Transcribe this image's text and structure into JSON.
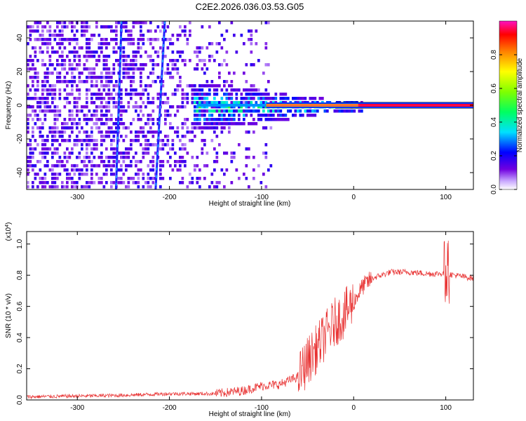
{
  "title": "C2E2.2026.036.03.53.G05",
  "chart_data": [
    {
      "type": "heatmap",
      "name": "spectrogram",
      "xlabel": "Height of straight line (km)",
      "ylabel": "Frequency (Hz)",
      "xlim": [
        -355,
        130
      ],
      "ylim": [
        -50,
        50
      ],
      "xticks": [
        -300,
        -200,
        -100,
        0,
        100
      ],
      "yticks": [
        -40,
        -20,
        0,
        20,
        40
      ],
      "colorbar": {
        "label": "Normalized spectral amplitude",
        "range": [
          0,
          1
        ],
        "ticks": [
          "0.0",
          "0.2",
          "0.4",
          "0.6",
          "0.8"
        ],
        "tick_values": [
          0.0,
          0.2,
          0.4,
          0.6,
          0.8
        ]
      },
      "features": [
        {
          "name": "main-tone",
          "freq_hz": 0,
          "from_km": -170,
          "to_km": 130,
          "peak_amplitude": 1.0
        },
        {
          "name": "diagonal-track-left",
          "points_km_hz": [
            [
              -252,
              50
            ],
            [
              -258,
              -50
            ]
          ]
        },
        {
          "name": "diagonal-track-right",
          "points_km_hz": [
            [
              -205,
              50
            ],
            [
              -215,
              -50
            ]
          ]
        }
      ]
    },
    {
      "type": "line",
      "name": "snr",
      "xlabel": "Height of straight line (km)",
      "ylabel": "SNR (10 * v/v)",
      "scale_label": "(x10",
      "scale_exponent": "4",
      "xlim": [
        -355,
        130
      ],
      "ylim": [
        0,
        1.08
      ],
      "xticks": [
        -300,
        -200,
        -100,
        0,
        100
      ],
      "yticks": [
        "0.0",
        "0.2",
        "0.4",
        "0.6",
        "0.8",
        "1.0"
      ],
      "ytick_values": [
        0.0,
        0.2,
        0.4,
        0.6,
        0.8,
        1.0
      ],
      "color": "#e83030",
      "series": [
        {
          "name": "SNR",
          "x": [
            -355,
            -300,
            -250,
            -200,
            -150,
            -120,
            -100,
            -80,
            -60,
            -50,
            -40,
            -30,
            -20,
            -10,
            0,
            10,
            20,
            40,
            60,
            80,
            100,
            110,
            130
          ],
          "y": [
            0.02,
            0.025,
            0.03,
            0.04,
            0.04,
            0.06,
            0.09,
            0.1,
            0.15,
            0.25,
            0.33,
            0.42,
            0.5,
            0.55,
            0.63,
            0.73,
            0.78,
            0.82,
            0.82,
            0.81,
            0.81,
            0.8,
            0.78
          ]
        }
      ]
    }
  ]
}
